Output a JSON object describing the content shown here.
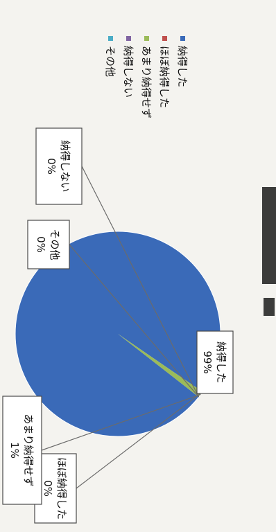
{
  "chart_data": {
    "type": "pie",
    "title": "",
    "categories": [
      "納得した",
      "ほぼ納得した",
      "あまり納得せず",
      "納得しない",
      "その他"
    ],
    "values": [
      99,
      0,
      1,
      0,
      0
    ],
    "colors": [
      "#3a6ab8",
      "#c0504d",
      "#9bbb59",
      "#8064a2",
      "#4bacc6"
    ],
    "data_labels": [
      {
        "name": "納得した",
        "pct": "99%"
      },
      {
        "name": "ほぼ納得した",
        "pct": "0%"
      },
      {
        "name": "あまり納得せず",
        "pct": "1%"
      },
      {
        "name": "納得しない",
        "pct": "0%"
      },
      {
        "name": "その他",
        "pct": "0%"
      }
    ],
    "legend": {
      "placement": "right",
      "items": [
        "納得した",
        "ほぼ納得した",
        "あまり納得せず",
        "納得しない",
        "その他"
      ]
    }
  }
}
